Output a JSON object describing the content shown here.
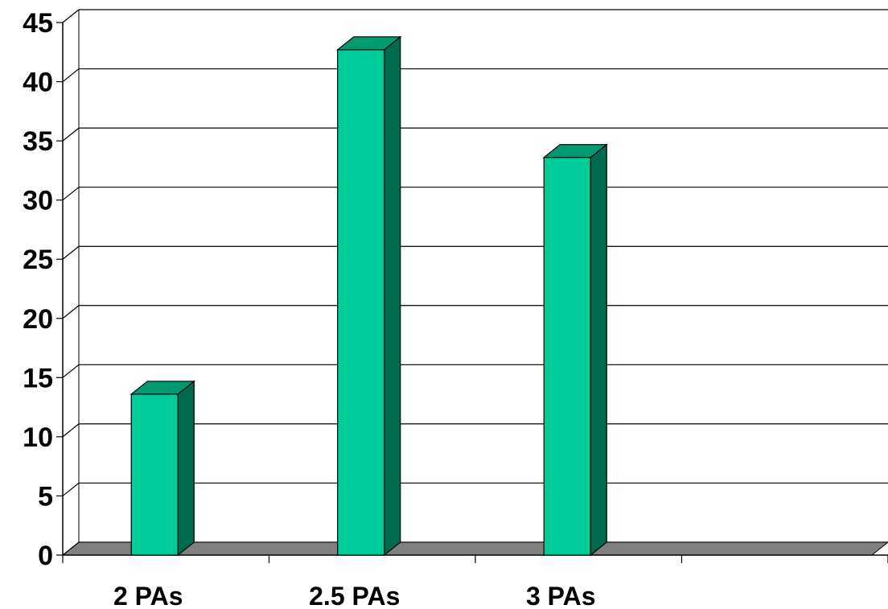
{
  "chart_data": {
    "type": "bar",
    "style": "3d-column",
    "categories": [
      "2 PAs",
      "2.5 PAs",
      "3 PAs",
      ""
    ],
    "values": [
      13.6,
      42.7,
      33.6,
      null
    ],
    "title": "",
    "xlabel": "",
    "ylabel": "",
    "ylim": [
      0,
      45
    ],
    "yticks": [
      "0",
      "5",
      "10",
      "15",
      "20",
      "25",
      "30",
      "35",
      "40",
      "45"
    ],
    "grid": true,
    "legend": "none",
    "colors": {
      "bar_front": "#00CC99",
      "bar_side": "#006A4E",
      "bar_top": "#009970",
      "floor": "#808080",
      "grid": "#000000"
    }
  }
}
